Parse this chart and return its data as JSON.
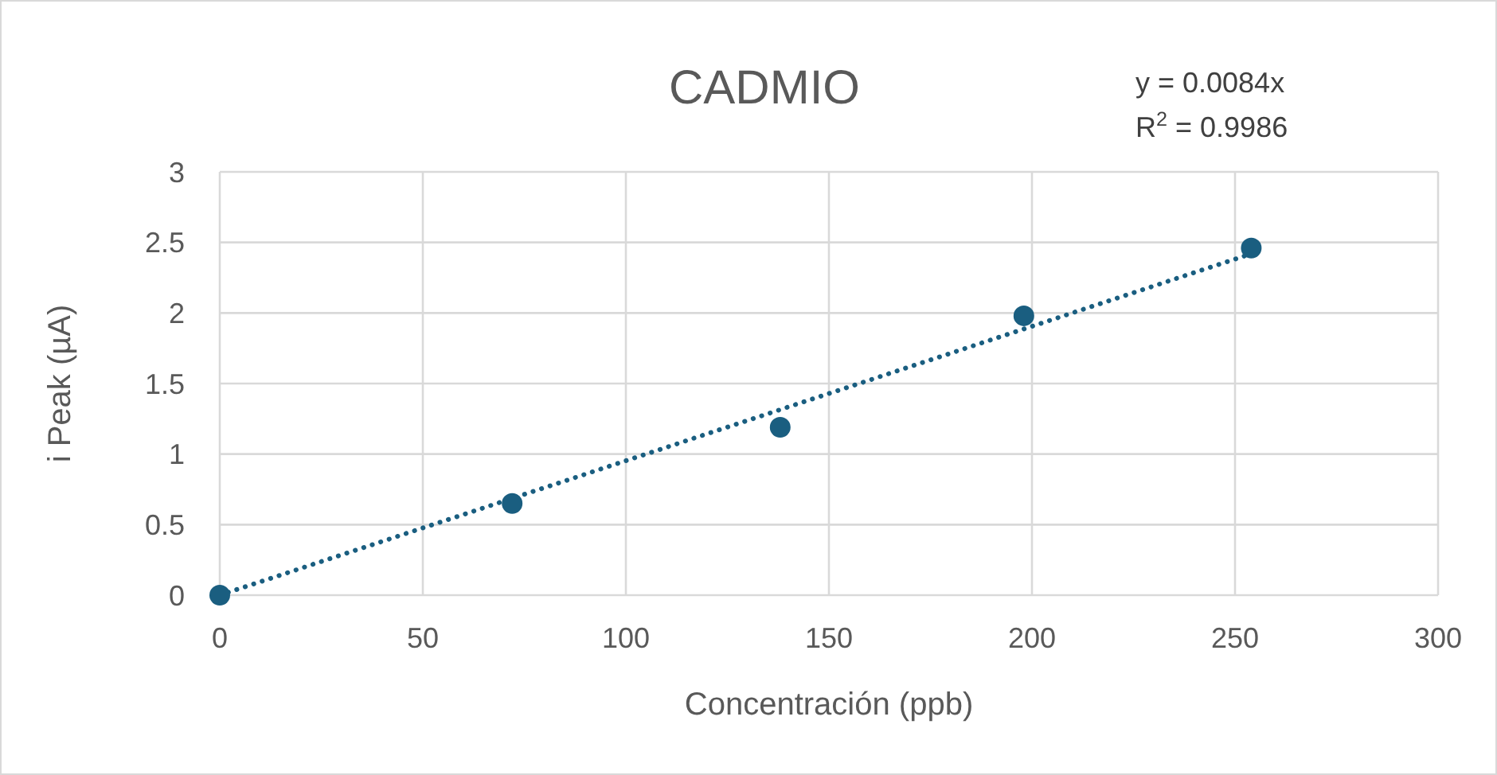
{
  "chart_data": {
    "type": "scatter",
    "title": "CADMIO",
    "xlabel": "Concentración (ppb)",
    "ylabel": "i Peak (µA)",
    "xlim": [
      0,
      300
    ],
    "xticks": [
      0,
      50,
      100,
      150,
      200,
      250,
      300
    ],
    "ylim": [
      0,
      3
    ],
    "yticks": [
      0,
      {
        "value": 0.5,
        "label": "0.5"
      },
      1,
      {
        "value": 1.5,
        "label": "1.5"
      },
      2,
      {
        "value": 2.5,
        "label": "2.5"
      },
      3
    ],
    "grid": true,
    "marker": "circle",
    "series": [
      {
        "color": "#1a5e80",
        "x": [
          0,
          72,
          138,
          198,
          254
        ],
        "values": [
          0,
          0.65,
          1.19,
          1.98,
          2.46
        ]
      },
      {
        "type": "line",
        "color": "#1a5e80",
        "line_style": "dotted",
        "marker": "none",
        "x": [
          0,
          254
        ],
        "values": [
          0,
          2.42
        ]
      }
    ],
    "annotations": [
      "y = 0.0084x",
      "R$^{2}$ = 0.9986"
    ]
  }
}
